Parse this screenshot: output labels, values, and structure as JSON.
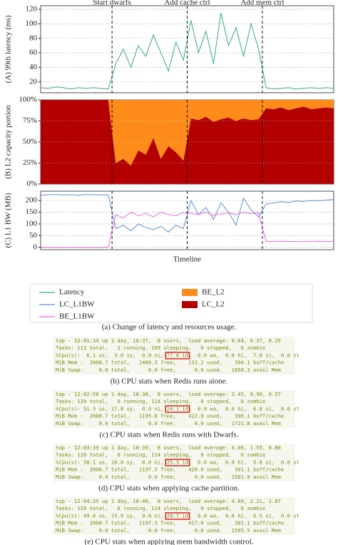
{
  "chart_data": [
    {
      "type": "line",
      "ylabel": "(A) 99th latency (ms)",
      "xlim": [
        0,
        39
      ],
      "ylim": [
        5,
        125
      ],
      "yticks": [
        20,
        40,
        60,
        80,
        100,
        120
      ],
      "grid": true,
      "annotations": [
        {
          "text": "Start dwarfs",
          "x": 9.5
        },
        {
          "text": "Add cache ctrl",
          "x": 19.5
        },
        {
          "text": "Add mem ctrl",
          "x": 29.5
        }
      ],
      "series": [
        {
          "name": "Latency",
          "color": "#3aaa80",
          "values": [
            12,
            11,
            13,
            12,
            10,
            12,
            11,
            12,
            11,
            10,
            45,
            65,
            40,
            70,
            55,
            85,
            60,
            35,
            75,
            50,
            105,
            60,
            90,
            45,
            115,
            70,
            95,
            55,
            100,
            65,
            12,
            10,
            11,
            12,
            10,
            11,
            12,
            11,
            12,
            11
          ]
        }
      ]
    },
    {
      "type": "stacked_area",
      "ylabel": "(B) L2 capacity portion",
      "xlim": [
        0,
        39
      ],
      "ylim": [
        0,
        100
      ],
      "yticks": [
        {
          "value": 0,
          "label": "0%"
        },
        {
          "value": 25,
          "label": "25%"
        },
        {
          "value": 50,
          "label": "50%"
        },
        {
          "value": 75,
          "label": "75%"
        },
        {
          "value": 100,
          "label": "100%"
        }
      ],
      "grid": true,
      "series": [
        {
          "name": "LC_L2",
          "color": "#b30000",
          "values": [
            100,
            100,
            100,
            100,
            100,
            100,
            100,
            100,
            100,
            100,
            25,
            30,
            22,
            40,
            35,
            55,
            30,
            45,
            38,
            28,
            78,
            76,
            80,
            74,
            77,
            79,
            75,
            78,
            76,
            77,
            90,
            89,
            91,
            88,
            90,
            92,
            89,
            90,
            91,
            90
          ]
        },
        {
          "name": "BE_L2",
          "color": "#ff8c1a",
          "values": [
            0,
            0,
            0,
            0,
            0,
            0,
            0,
            0,
            0,
            0,
            75,
            70,
            78,
            60,
            65,
            45,
            70,
            55,
            62,
            72,
            22,
            24,
            20,
            26,
            23,
            21,
            25,
            22,
            24,
            23,
            10,
            11,
            9,
            12,
            10,
            8,
            11,
            10,
            9,
            10
          ]
        }
      ]
    },
    {
      "type": "line",
      "ylabel": "(C) L1 BW (MB)",
      "xlabel": "Timeline",
      "xlim": [
        0,
        39
      ],
      "ylim": [
        -10,
        240
      ],
      "yticks": [
        0,
        50,
        100,
        150,
        200
      ],
      "grid": true,
      "series": [
        {
          "name": "LC_L1BW",
          "color": "#5b8fd6",
          "values": [
            222,
            225,
            226,
            224,
            225,
            223,
            226,
            225,
            224,
            225,
            80,
            95,
            70,
            100,
            85,
            75,
            90,
            65,
            95,
            80,
            200,
            140,
            170,
            120,
            190,
            150,
            95,
            210,
            160,
            130,
            185,
            190,
            195,
            192,
            198,
            196,
            200,
            199,
            202,
            205
          ]
        },
        {
          "name": "BE_L1BW",
          "color": "#ee66ee",
          "values": [
            0,
            0,
            0,
            0,
            0,
            0,
            0,
            0,
            0,
            0,
            140,
            125,
            150,
            135,
            145,
            130,
            150,
            140,
            135,
            148,
            145,
            140,
            150,
            138,
            142,
            147,
            140,
            150,
            143,
            148,
            25,
            25,
            26,
            25,
            25,
            24,
            25,
            26,
            25,
            25
          ]
        }
      ]
    }
  ],
  "caption_a": "(a) Change of latency and resources usage.",
  "terminals": [
    {
      "lines": [
        "top - 12:01:34 up 1 day, 18:37,  8 users,  load average: 0.64, 0.37, 0.25",
        "Tasks: 111 total,   2 running, 109 sleeping,   0 stopped,   0 zombie"
      ],
      "cpu": [
        "%Cpu(s):  6.1 us,  9.0 sy,  0.0 ni, ",
        "77.8 id",
        ",  0.0 wa,  0.0 hi,  7.0 si,  0.0 st"
      ],
      "mem": [
        "MiB Mem :  2008.7 total,   1486.3 free,    132.2 used,    390.1 buff/cache",
        "MiB Swap:     0.0 total,      0.0 free,      0.0 used.   1850.3 avail Mem"
      ],
      "caption": "(b) CPU stats when Redis runs alone."
    },
    {
      "lines": [
        "top - 12:02:56 up 1 day, 18:38,  8 users,  load average: 2.45, 0.90, 0.57",
        "Tasks: 120 total,   6 running, 114 sleeping,   0 stopped,   0 zombie"
      ],
      "cpu": [
        "%Cpu(s): 51.3 us, 17.8 sy,  0.0 ni, ",
        "24.1 id",
        ",  0.0 wa,  0.0 hi,  6.8 si,  0.0 st"
      ],
      "mem": [
        "MiB Mem :  2008.7 total,   1195.8 free,    422.9 used,    390.1 buff/cache",
        "MiB Swap:     0.0 total,      0.0 free,      0.0 used.   1721.8 avail Mem"
      ],
      "caption": "(c) CPU stats when Redis runs with Dwarfs."
    },
    {
      "lines": [
        "top - 12:03:39 up 1 day, 18:39,  8 users,  load average: 4.06, 1.55, 0.80",
        "Tasks: 120 total,   6 running, 114 sleeping,   0 stopped,   0 zombie"
      ],
      "cpu": [
        "%Cpu(s): 58.1 us, 10.8 sy,  0.0 ni, ",
        "25.3 id",
        ",  0.0 wa,  0.0 hi,  5.8 si,  0.0 st"
      ],
      "mem": [
        "MiB Mem :  2008.7 total,   1197.5 free,    420.0 used,    391.1 buff/cache",
        "MiB Swap:     0.0 total,      0.0 free,      0.0 used.   1561.9 avail Mem"
      ],
      "caption": "(d) CPU stats when applying cache partition."
    },
    {
      "lines": [
        "top - 12:04:35 up 1 day, 18:40,  8 users,  load average: 4.89, 2.21, 1.07",
        "Tasks: 120 total,   6 running, 114 sleeping,   0 stopped,   0 zombie"
      ],
      "cpu": [
        "%Cpu(s): 49.0 us, 15.9 sy,  0.0 ni, ",
        "28.7 id",
        ",  0.0 wa,  0.0 hi,  6.5 si,  0.0 st"
      ],
      "mem": [
        "MiB Mem :  2008.7 total,   1197.3 free,    417.0 used,    391.1 buff/cache",
        "MiB Swap:     0.0 total,      0.0 free,      0.0 used.   1565.5 avail Mem"
      ],
      "caption": "(e) CPU stats when applying mem bandwidth control."
    }
  ]
}
